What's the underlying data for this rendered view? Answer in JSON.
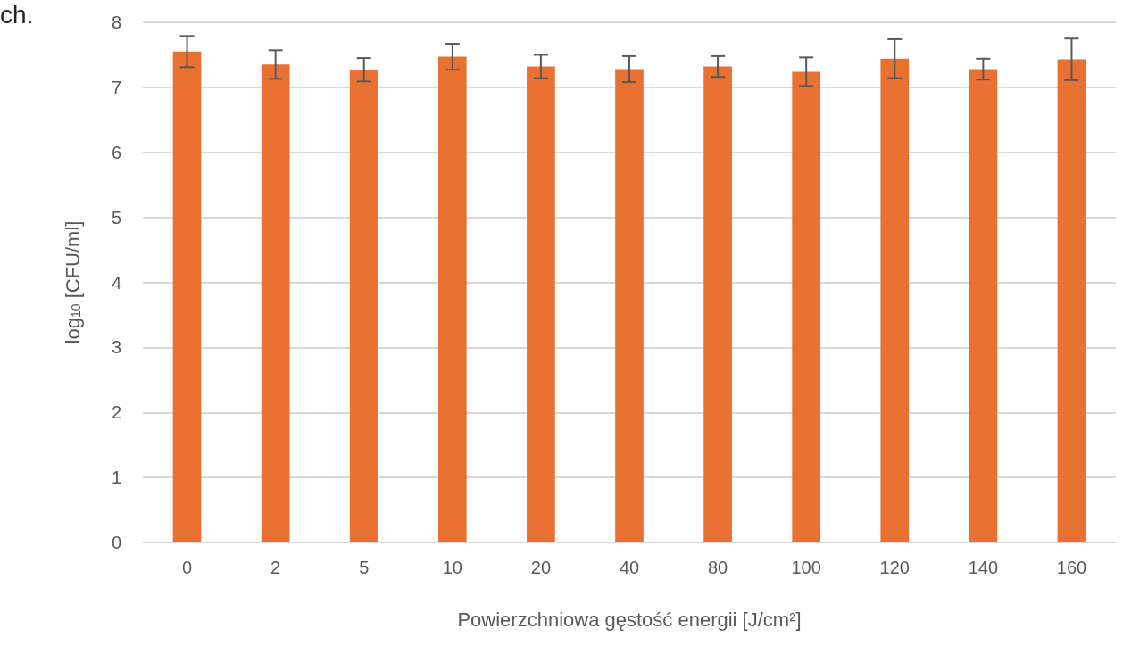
{
  "chart_data": {
    "type": "bar",
    "xlabel": "Powierzchniowa gęstość energii [J/cm²]",
    "ylabel": "log$_{10}$ [CFU/ml]",
    "annotations": [
      "ch."
    ],
    "categories": [
      "0",
      "2",
      "5",
      "10",
      "20",
      "40",
      "80",
      "100",
      "120",
      "140",
      "160"
    ],
    "values": [
      7.55,
      7.35,
      7.27,
      7.47,
      7.32,
      7.28,
      7.32,
      7.24,
      7.44,
      7.28,
      7.43
    ],
    "errors": [
      0.24,
      0.22,
      0.18,
      0.2,
      0.18,
      0.2,
      0.16,
      0.22,
      0.3,
      0.16,
      0.32
    ],
    "color": "#e97132",
    "ylim": [
      0,
      8
    ],
    "yticks": [
      0,
      1,
      2,
      3,
      4,
      5,
      6,
      7,
      8
    ],
    "grid": "y"
  }
}
